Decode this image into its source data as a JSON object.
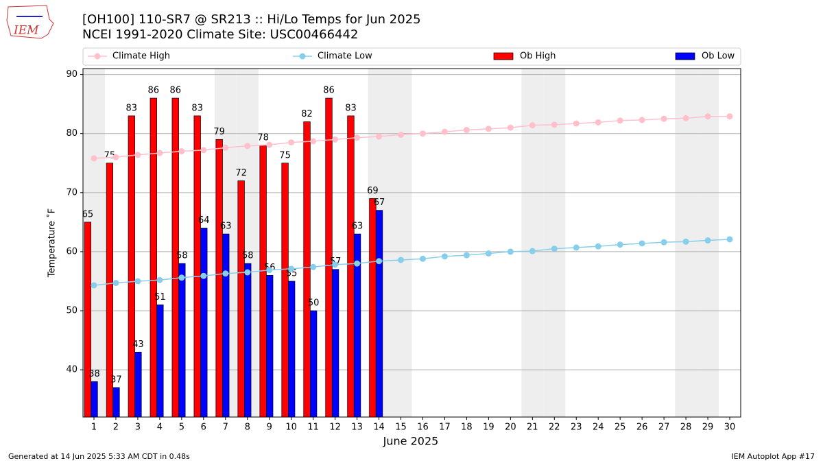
{
  "logo": "IEM",
  "footer": {
    "left": "Generated at 14 Jun 2025 5:33 AM CDT in 0.48s",
    "right": "IEM Autoplot App #17"
  },
  "chart_data": {
    "type": "bar",
    "title": "[OH100] 110-SR7 @ SR213 :: Hi/Lo Temps for Jun 2025",
    "subtitle": "NCEI 1991-2020 Climate Site: USC00466442",
    "x_label": "June 2025",
    "y_label": "Temperature ˚F",
    "categories": [
      "1",
      "2",
      "3",
      "4",
      "5",
      "6",
      "7",
      "8",
      "9",
      "10",
      "11",
      "12",
      "13",
      "14",
      "15",
      "16",
      "17",
      "18",
      "19",
      "20",
      "21",
      "22",
      "23",
      "24",
      "25",
      "26",
      "27",
      "28",
      "29",
      "30"
    ],
    "shaded_days": [
      1,
      7,
      8,
      14,
      15,
      21,
      22,
      28,
      29
    ],
    "ylim": [
      32,
      91
    ],
    "yticks": [
      40,
      50,
      60,
      70,
      80,
      90
    ],
    "grid": true,
    "legend": "top",
    "series": [
      {
        "name": "Climate High",
        "type": "line",
        "color": "#ffc0cb",
        "values": [
          75.8,
          76.0,
          76.4,
          76.7,
          77.0,
          77.2,
          77.6,
          77.9,
          78.1,
          78.5,
          78.7,
          79.0,
          79.3,
          79.5,
          79.8,
          80.0,
          80.3,
          80.6,
          80.8,
          81.0,
          81.4,
          81.5,
          81.7,
          81.9,
          82.2,
          82.3,
          82.5,
          82.6,
          82.9,
          82.9
        ]
      },
      {
        "name": "Climate Low",
        "type": "line",
        "color": "#87ceeb",
        "values": [
          54.3,
          54.7,
          55.0,
          55.2,
          55.6,
          55.9,
          56.3,
          56.5,
          56.9,
          57.1,
          57.4,
          57.8,
          58.0,
          58.4,
          58.6,
          58.8,
          59.2,
          59.4,
          59.7,
          60.0,
          60.1,
          60.5,
          60.7,
          60.9,
          61.2,
          61.4,
          61.6,
          61.7,
          61.9,
          62.1
        ]
      },
      {
        "name": "Ob High",
        "type": "bar",
        "color": "#ff0000",
        "values": [
          65,
          75,
          83,
          86,
          86,
          83,
          79,
          72,
          78,
          75,
          82,
          86,
          83,
          69,
          null,
          null,
          null,
          null,
          null,
          null,
          null,
          null,
          null,
          null,
          null,
          null,
          null,
          null,
          null,
          null
        ]
      },
      {
        "name": "Ob Low",
        "type": "bar",
        "color": "#0000ff",
        "values": [
          38,
          37,
          43,
          51,
          58,
          64,
          63,
          58,
          56,
          55,
          50,
          57,
          63,
          67,
          null,
          null,
          null,
          null,
          null,
          null,
          null,
          null,
          null,
          null,
          null,
          null,
          null,
          null,
          null,
          null
        ]
      }
    ]
  }
}
